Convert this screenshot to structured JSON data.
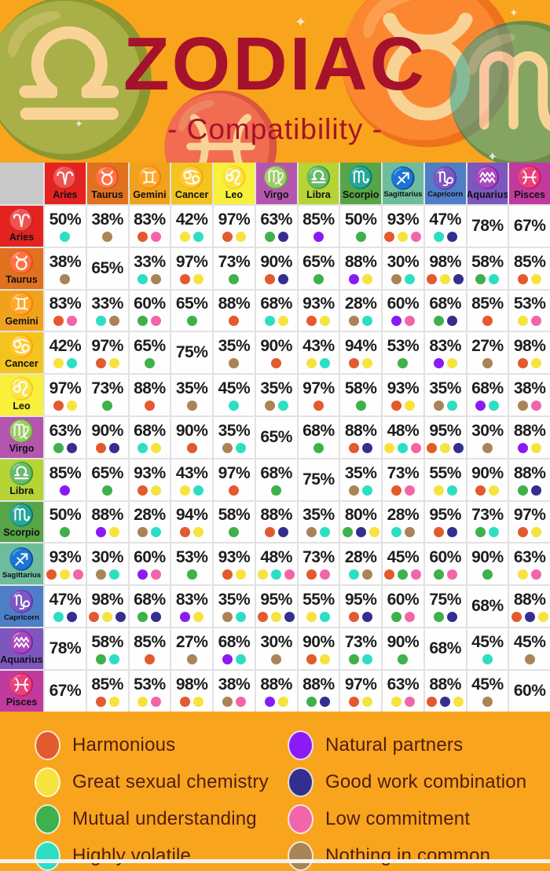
{
  "title": "ZODIAC",
  "subtitle": "- Compatibility -",
  "colors": {
    "background": "#F9A41D",
    "title_text": "#A6122B",
    "legend_text": "#4F1D12",
    "corner_cell": "#C9C9C9"
  },
  "signs": [
    {
      "name": "Aries",
      "symbol": "♈",
      "color": "#E42320"
    },
    {
      "name": "Taurus",
      "symbol": "♉",
      "color": "#E0711E"
    },
    {
      "name": "Gemini",
      "symbol": "♊",
      "color": "#F0A21D"
    },
    {
      "name": "Cancer",
      "symbol": "♋",
      "color": "#F3C41F"
    },
    {
      "name": "Leo",
      "symbol": "♌",
      "color": "#F8F03A"
    },
    {
      "name": "Virgo",
      "symbol": "♍",
      "color": "#B456AE"
    },
    {
      "name": "Libra",
      "symbol": "♎",
      "color": "#B6D434"
    },
    {
      "name": "Scorpio",
      "symbol": "♏",
      "color": "#57A546"
    },
    {
      "name": "Sagittarius",
      "symbol": "♐",
      "color": "#6DBD9C"
    },
    {
      "name": "Capricorn",
      "symbol": "♑",
      "color": "#4E7EC6"
    },
    {
      "name": "Aquarius",
      "symbol": "♒",
      "color": "#7E57BE"
    },
    {
      "name": "Pisces",
      "symbol": "♓",
      "color": "#C13A9D"
    }
  ],
  "dot_codes": {
    "O": "harmonious",
    "Y": "chemistry",
    "G": "understanding",
    "C": "volatile",
    "P": "partners",
    "B": "work",
    "K": "commitment",
    "N": "common"
  },
  "dot_types": {
    "harmonious": {
      "color": "#E25A2D",
      "label": "Harmonious"
    },
    "chemistry": {
      "color": "#F6E33E",
      "label": "Great sexual chemistry"
    },
    "understanding": {
      "color": "#3EB04C",
      "label": "Mutual understanding"
    },
    "volatile": {
      "color": "#2CDFC3",
      "label": "Highly volatile"
    },
    "partners": {
      "color": "#8A1BF4",
      "label": "Natural partners"
    },
    "work": {
      "color": "#342E8E",
      "label": "Good work combination"
    },
    "commitment": {
      "color": "#F265A8",
      "label": "Low commitment"
    },
    "common": {
      "color": "#AA8457",
      "label": "Nothing in common"
    }
  },
  "legend": {
    "left": [
      "harmonious",
      "chemistry",
      "understanding",
      "volatile"
    ],
    "right": [
      "partners",
      "work",
      "commitment",
      "common"
    ]
  },
  "chart_data": {
    "type": "table",
    "title": "ZODIAC - Compatibility -",
    "col_labels": [
      "Aries",
      "Taurus",
      "Gemini",
      "Cancer",
      "Leo",
      "Virgo",
      "Libra",
      "Scorpio",
      "Sagittarius",
      "Capricorn",
      "Aquarius",
      "Pisces"
    ],
    "rows": [
      {
        "sign": "Aries",
        "cells": [
          {
            "v": "50%",
            "d": [
              "C"
            ]
          },
          {
            "v": "38%",
            "d": [
              "N"
            ]
          },
          {
            "v": "83%",
            "d": [
              "O",
              "K"
            ]
          },
          {
            "v": "42%",
            "d": [
              "Y",
              "C"
            ]
          },
          {
            "v": "97%",
            "d": [
              "O",
              "Y"
            ]
          },
          {
            "v": "63%",
            "d": [
              "G",
              "B"
            ]
          },
          {
            "v": "85%",
            "d": [
              "P"
            ]
          },
          {
            "v": "50%",
            "d": [
              "G"
            ]
          },
          {
            "v": "93%",
            "d": [
              "O",
              "Y",
              "K"
            ]
          },
          {
            "v": "47%",
            "d": [
              "C",
              "B"
            ]
          },
          {
            "v": "78%",
            "d": []
          },
          {
            "v": "67%",
            "d": []
          }
        ]
      },
      {
        "sign": "Taurus",
        "cells": [
          {
            "v": "38%",
            "d": [
              "N"
            ]
          },
          {
            "v": "65%",
            "d": []
          },
          {
            "v": "33%",
            "d": [
              "C",
              "N"
            ]
          },
          {
            "v": "97%",
            "d": [
              "O",
              "Y"
            ]
          },
          {
            "v": "73%",
            "d": [
              "G"
            ]
          },
          {
            "v": "90%",
            "d": [
              "O",
              "B"
            ]
          },
          {
            "v": "65%",
            "d": [
              "G"
            ]
          },
          {
            "v": "88%",
            "d": [
              "P",
              "Y"
            ]
          },
          {
            "v": "30%",
            "d": [
              "N",
              "C"
            ]
          },
          {
            "v": "98%",
            "d": [
              "O",
              "Y",
              "B"
            ]
          },
          {
            "v": "58%",
            "d": [
              "G",
              "C"
            ]
          },
          {
            "v": "85%",
            "d": [
              "O",
              "Y"
            ]
          }
        ]
      },
      {
        "sign": "Gemini",
        "cells": [
          {
            "v": "83%",
            "d": [
              "O",
              "K"
            ]
          },
          {
            "v": "33%",
            "d": [
              "C",
              "N"
            ]
          },
          {
            "v": "60%",
            "d": [
              "G",
              "K"
            ]
          },
          {
            "v": "65%",
            "d": [
              "G"
            ]
          },
          {
            "v": "88%",
            "d": [
              "O"
            ]
          },
          {
            "v": "68%",
            "d": [
              "C",
              "Y"
            ]
          },
          {
            "v": "93%",
            "d": [
              "O",
              "Y"
            ]
          },
          {
            "v": "28%",
            "d": [
              "N",
              "C"
            ]
          },
          {
            "v": "60%",
            "d": [
              "P",
              "K"
            ]
          },
          {
            "v": "68%",
            "d": [
              "G",
              "B"
            ]
          },
          {
            "v": "85%",
            "d": [
              "O"
            ]
          },
          {
            "v": "53%",
            "d": [
              "Y",
              "K"
            ]
          }
        ]
      },
      {
        "sign": "Cancer",
        "cells": [
          {
            "v": "42%",
            "d": [
              "Y",
              "C"
            ]
          },
          {
            "v": "97%",
            "d": [
              "O",
              "Y"
            ]
          },
          {
            "v": "65%",
            "d": [
              "G"
            ]
          },
          {
            "v": "75%",
            "d": []
          },
          {
            "v": "35%",
            "d": [
              "N"
            ]
          },
          {
            "v": "90%",
            "d": [
              "O"
            ]
          },
          {
            "v": "43%",
            "d": [
              "Y",
              "C"
            ]
          },
          {
            "v": "94%",
            "d": [
              "O",
              "Y"
            ]
          },
          {
            "v": "53%",
            "d": [
              "G"
            ]
          },
          {
            "v": "83%",
            "d": [
              "P",
              "Y"
            ]
          },
          {
            "v": "27%",
            "d": [
              "N"
            ]
          },
          {
            "v": "98%",
            "d": [
              "O",
              "Y"
            ]
          }
        ]
      },
      {
        "sign": "Leo",
        "cells": [
          {
            "v": "97%",
            "d": [
              "O",
              "Y"
            ]
          },
          {
            "v": "73%",
            "d": [
              "G"
            ]
          },
          {
            "v": "88%",
            "d": [
              "O"
            ]
          },
          {
            "v": "35%",
            "d": [
              "N"
            ]
          },
          {
            "v": "45%",
            "d": [
              "C"
            ]
          },
          {
            "v": "35%",
            "d": [
              "N",
              "C"
            ]
          },
          {
            "v": "97%",
            "d": [
              "O"
            ]
          },
          {
            "v": "58%",
            "d": [
              "G"
            ]
          },
          {
            "v": "93%",
            "d": [
              "O",
              "Y"
            ]
          },
          {
            "v": "35%",
            "d": [
              "N",
              "C"
            ]
          },
          {
            "v": "68%",
            "d": [
              "P",
              "C"
            ]
          },
          {
            "v": "38%",
            "d": [
              "N",
              "K"
            ]
          }
        ]
      },
      {
        "sign": "Virgo",
        "cells": [
          {
            "v": "63%",
            "d": [
              "G",
              "B"
            ]
          },
          {
            "v": "90%",
            "d": [
              "O",
              "B"
            ]
          },
          {
            "v": "68%",
            "d": [
              "C",
              "Y"
            ]
          },
          {
            "v": "90%",
            "d": [
              "O"
            ]
          },
          {
            "v": "35%",
            "d": [
              "N",
              "C"
            ]
          },
          {
            "v": "65%",
            "d": []
          },
          {
            "v": "68%",
            "d": [
              "G"
            ]
          },
          {
            "v": "88%",
            "d": [
              "O",
              "B"
            ]
          },
          {
            "v": "48%",
            "d": [
              "Y",
              "C",
              "K"
            ]
          },
          {
            "v": "95%",
            "d": [
              "O",
              "Y",
              "B"
            ]
          },
          {
            "v": "30%",
            "d": [
              "N"
            ]
          },
          {
            "v": "88%",
            "d": [
              "P",
              "Y"
            ]
          }
        ]
      },
      {
        "sign": "Libra",
        "cells": [
          {
            "v": "85%",
            "d": [
              "P"
            ]
          },
          {
            "v": "65%",
            "d": [
              "G"
            ]
          },
          {
            "v": "93%",
            "d": [
              "O",
              "Y"
            ]
          },
          {
            "v": "43%",
            "d": [
              "Y",
              "C"
            ]
          },
          {
            "v": "97%",
            "d": [
              "O"
            ]
          },
          {
            "v": "68%",
            "d": [
              "G"
            ]
          },
          {
            "v": "75%",
            "d": []
          },
          {
            "v": "35%",
            "d": [
              "N",
              "C"
            ]
          },
          {
            "v": "73%",
            "d": [
              "O",
              "K"
            ]
          },
          {
            "v": "55%",
            "d": [
              "Y",
              "C"
            ]
          },
          {
            "v": "90%",
            "d": [
              "O",
              "Y"
            ]
          },
          {
            "v": "88%",
            "d": [
              "G",
              "B"
            ]
          }
        ]
      },
      {
        "sign": "Scorpio",
        "cells": [
          {
            "v": "50%",
            "d": [
              "G"
            ]
          },
          {
            "v": "88%",
            "d": [
              "P",
              "Y"
            ]
          },
          {
            "v": "28%",
            "d": [
              "N",
              "C"
            ]
          },
          {
            "v": "94%",
            "d": [
              "O",
              "Y"
            ]
          },
          {
            "v": "58%",
            "d": [
              "G"
            ]
          },
          {
            "v": "88%",
            "d": [
              "O",
              "B"
            ]
          },
          {
            "v": "35%",
            "d": [
              "N",
              "C"
            ]
          },
          {
            "v": "80%",
            "d": [
              "G",
              "B",
              "Y"
            ]
          },
          {
            "v": "28%",
            "d": [
              "C",
              "N"
            ]
          },
          {
            "v": "95%",
            "d": [
              "O",
              "B"
            ]
          },
          {
            "v": "73%",
            "d": [
              "G",
              "C"
            ]
          },
          {
            "v": "97%",
            "d": [
              "O",
              "Y"
            ]
          }
        ]
      },
      {
        "sign": "Sagittarius",
        "cells": [
          {
            "v": "93%",
            "d": [
              "O",
              "Y",
              "K"
            ]
          },
          {
            "v": "30%",
            "d": [
              "N",
              "C"
            ]
          },
          {
            "v": "60%",
            "d": [
              "P",
              "K"
            ]
          },
          {
            "v": "53%",
            "d": [
              "G"
            ]
          },
          {
            "v": "93%",
            "d": [
              "O",
              "Y"
            ]
          },
          {
            "v": "48%",
            "d": [
              "Y",
              "C",
              "K"
            ]
          },
          {
            "v": "73%",
            "d": [
              "O",
              "K"
            ]
          },
          {
            "v": "28%",
            "d": [
              "C",
              "N"
            ]
          },
          {
            "v": "45%",
            "d": [
              "O",
              "G",
              "K"
            ]
          },
          {
            "v": "60%",
            "d": [
              "G",
              "K"
            ]
          },
          {
            "v": "90%",
            "d": [
              "G"
            ]
          },
          {
            "v": "63%",
            "d": [
              "Y",
              "K"
            ]
          }
        ]
      },
      {
        "sign": "Capricorn",
        "cells": [
          {
            "v": "47%",
            "d": [
              "C",
              "B"
            ]
          },
          {
            "v": "98%",
            "d": [
              "O",
              "Y",
              "B"
            ]
          },
          {
            "v": "68%",
            "d": [
              "G",
              "B"
            ]
          },
          {
            "v": "83%",
            "d": [
              "P",
              "Y"
            ]
          },
          {
            "v": "35%",
            "d": [
              "N",
              "C"
            ]
          },
          {
            "v": "95%",
            "d": [
              "O",
              "Y",
              "B"
            ]
          },
          {
            "v": "55%",
            "d": [
              "Y",
              "C"
            ]
          },
          {
            "v": "95%",
            "d": [
              "O",
              "B"
            ]
          },
          {
            "v": "60%",
            "d": [
              "G",
              "K"
            ]
          },
          {
            "v": "75%",
            "d": [
              "G",
              "B"
            ]
          },
          {
            "v": "68%",
            "d": []
          },
          {
            "v": "88%",
            "d": [
              "O",
              "B",
              "Y"
            ]
          }
        ]
      },
      {
        "sign": "Aquarius",
        "cells": [
          {
            "v": "78%",
            "d": []
          },
          {
            "v": "58%",
            "d": [
              "G",
              "C"
            ]
          },
          {
            "v": "85%",
            "d": [
              "O"
            ]
          },
          {
            "v": "27%",
            "d": [
              "N"
            ]
          },
          {
            "v": "68%",
            "d": [
              "P",
              "C"
            ]
          },
          {
            "v": "30%",
            "d": [
              "N"
            ]
          },
          {
            "v": "90%",
            "d": [
              "O",
              "Y"
            ]
          },
          {
            "v": "73%",
            "d": [
              "G",
              "C"
            ]
          },
          {
            "v": "90%",
            "d": [
              "G"
            ]
          },
          {
            "v": "68%",
            "d": []
          },
          {
            "v": "45%",
            "d": [
              "C"
            ]
          },
          {
            "v": "45%",
            "d": [
              "N"
            ]
          }
        ]
      },
      {
        "sign": "Pisces",
        "cells": [
          {
            "v": "67%",
            "d": []
          },
          {
            "v": "85%",
            "d": [
              "O",
              "Y"
            ]
          },
          {
            "v": "53%",
            "d": [
              "Y",
              "K"
            ]
          },
          {
            "v": "98%",
            "d": [
              "O",
              "Y"
            ]
          },
          {
            "v": "38%",
            "d": [
              "N",
              "K"
            ]
          },
          {
            "v": "88%",
            "d": [
              "P",
              "Y"
            ]
          },
          {
            "v": "88%",
            "d": [
              "G",
              "B"
            ]
          },
          {
            "v": "97%",
            "d": [
              "O",
              "Y"
            ]
          },
          {
            "v": "63%",
            "d": [
              "Y",
              "K"
            ]
          },
          {
            "v": "88%",
            "d": [
              "O",
              "B",
              "Y"
            ]
          },
          {
            "v": "45%",
            "d": [
              "N"
            ]
          },
          {
            "v": "60%",
            "d": []
          }
        ]
      }
    ]
  },
  "decorations": [
    "♎",
    "♉",
    "♏",
    "♓",
    "✦"
  ]
}
